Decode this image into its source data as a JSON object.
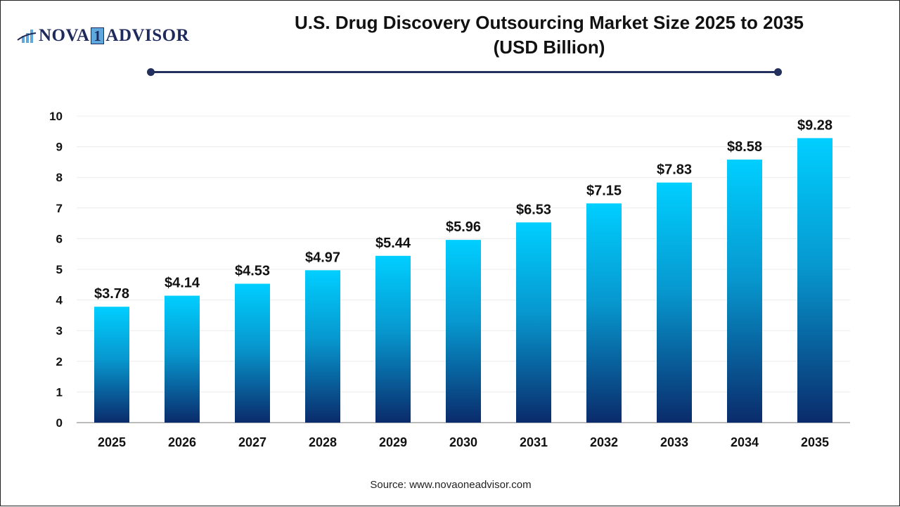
{
  "logo": {
    "text_left": "NOVA",
    "text_mid": "1",
    "text_right": "ADVISOR"
  },
  "colors": {
    "bar_top": "#00cfff",
    "bar_bottom": "#0a2b6b",
    "title_line": "#23305e"
  },
  "chart_data": {
    "type": "bar",
    "title": "U.S. Drug Discovery Outsourcing Market Size 2025 to 2035 (USD Billion)",
    "title_line1": "U.S. Drug Discovery Outsourcing Market Size 2025 to 2035",
    "title_line2": "(USD Billion)",
    "categories": [
      "2025",
      "2026",
      "2027",
      "2028",
      "2029",
      "2030",
      "2031",
      "2032",
      "2033",
      "2034",
      "2035"
    ],
    "values": [
      3.78,
      4.14,
      4.53,
      4.97,
      5.44,
      5.96,
      6.53,
      7.15,
      7.83,
      8.58,
      9.28
    ],
    "data_labels": [
      "$3.78",
      "$4.14",
      "$4.53",
      "$4.97",
      "$5.44",
      "$5.96",
      "$6.53",
      "$7.15",
      "$7.83",
      "$8.58",
      "$9.28"
    ],
    "yticks": [
      "0",
      "1",
      "2",
      "3",
      "4",
      "5",
      "6",
      "7",
      "8",
      "9",
      "10"
    ],
    "ylim": [
      0,
      10
    ],
    "xlabel": "",
    "ylabel": "",
    "grid": true,
    "legend": "none"
  },
  "source": "Source: www.novaoneadvisor.com"
}
